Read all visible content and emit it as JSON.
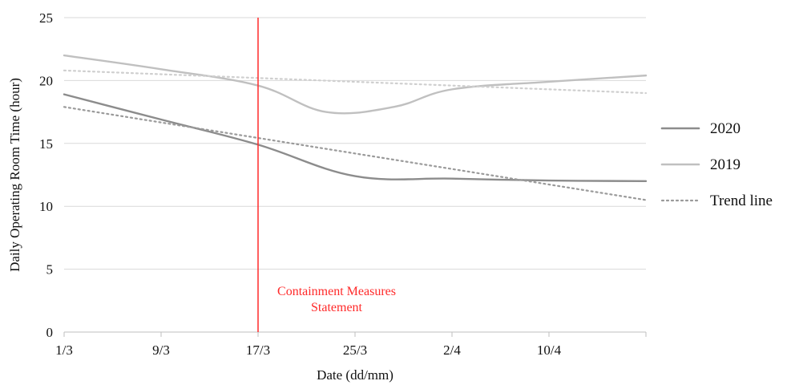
{
  "chart_data": {
    "type": "line",
    "title": "",
    "xlabel": "Date (dd/mm)",
    "ylabel": "Daily  Operating  Room Time  (hour)",
    "categories": [
      "1/3",
      "9/3",
      "17/3",
      "25/3",
      "2/4",
      "10/4"
    ],
    "yticks": [
      0,
      5,
      10,
      15,
      20,
      25
    ],
    "ylim": [
      0,
      25
    ],
    "grid": true,
    "legend_position": "right",
    "series": [
      {
        "name": "2020",
        "color": "#8c8c8c",
        "style": "solid",
        "x": [
          0,
          1,
          2,
          3,
          4,
          5,
          6
        ],
        "y": [
          18.9,
          16.9,
          14.9,
          12.4,
          12.2,
          12.05,
          12.0
        ]
      },
      {
        "name": "2019",
        "color": "#c0c0c0",
        "style": "solid",
        "x": [
          0,
          1,
          2,
          2.7,
          3.4,
          4,
          5,
          6
        ],
        "y": [
          22.0,
          20.9,
          19.6,
          17.5,
          17.9,
          19.3,
          19.9,
          20.4
        ]
      },
      {
        "name": "Trend line",
        "color": "#9a9a9a",
        "style": "dotted",
        "x": [
          0,
          6
        ],
        "y": [
          17.9,
          10.5
        ]
      },
      {
        "name": "",
        "color": "#cfcfcf",
        "style": "dotted",
        "x": [
          0,
          6
        ],
        "y": [
          20.8,
          19.0
        ]
      }
    ],
    "legend": [
      {
        "label": "2020",
        "color": "#8c8c8c",
        "style": "solid"
      },
      {
        "label": "2019",
        "color": "#c0c0c0",
        "style": "solid"
      },
      {
        "label": "Trend line",
        "color": "#9a9a9a",
        "style": "dotted"
      }
    ],
    "annotations": [
      {
        "x": 2,
        "lines": [
          "Containment Measures",
          "Statement"
        ],
        "color": "#ff2a2a"
      }
    ]
  }
}
